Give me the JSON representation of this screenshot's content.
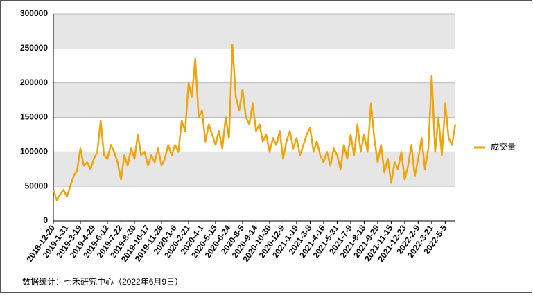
{
  "chart_data": {
    "type": "line",
    "categories": [
      "2018-12-20",
      null,
      null,
      null,
      "2019-1-31",
      null,
      null,
      null,
      "2019-3-19",
      null,
      null,
      null,
      "2019-4-29",
      null,
      null,
      null,
      "2019-6-12",
      null,
      null,
      null,
      "2019-7-22",
      null,
      null,
      null,
      "2019-8-30",
      null,
      null,
      null,
      "2019-10-17",
      null,
      null,
      null,
      "2019-11-26",
      null,
      null,
      null,
      "2020-1-6",
      null,
      null,
      null,
      "2020-2-21",
      null,
      null,
      null,
      "2020-4-1",
      null,
      null,
      null,
      "2020-5-15",
      null,
      null,
      null,
      "2020-6-24",
      null,
      null,
      null,
      "2020-8-5",
      null,
      null,
      null,
      "2020-9-14",
      null,
      null,
      null,
      "2020-10-30",
      null,
      null,
      null,
      "2020-12-9",
      null,
      null,
      null,
      "2021-1-19",
      null,
      null,
      null,
      "2021-3-8",
      null,
      null,
      null,
      "2021-4-16",
      null,
      null,
      null,
      "2021-5-31",
      null,
      null,
      null,
      "2021-7-9",
      null,
      null,
      null,
      "2021-8-18",
      null,
      null,
      null,
      "2021-9-29",
      null,
      null,
      null,
      "2021-11-15",
      null,
      null,
      null,
      "2021-12-23",
      null,
      null,
      null,
      "2022-2-9",
      null,
      null,
      null,
      "2022-3-21",
      null,
      null,
      null,
      "2022-5-5",
      null,
      null,
      null
    ],
    "series": [
      {
        "name": "成交量",
        "color": "#f0a30a",
        "values": [
          45000,
          30000,
          38000,
          45000,
          35000,
          50000,
          65000,
          72000,
          105000,
          80000,
          85000,
          75000,
          90000,
          100000,
          145000,
          95000,
          90000,
          110000,
          100000,
          85000,
          60000,
          95000,
          80000,
          105000,
          90000,
          125000,
          95000,
          100000,
          80000,
          95000,
          85000,
          105000,
          80000,
          90000,
          110000,
          95000,
          110000,
          100000,
          145000,
          130000,
          200000,
          180000,
          235000,
          150000,
          160000,
          115000,
          140000,
          125000,
          110000,
          130000,
          105000,
          150000,
          120000,
          255000,
          180000,
          160000,
          190000,
          150000,
          140000,
          170000,
          130000,
          140000,
          115000,
          125000,
          100000,
          120000,
          110000,
          130000,
          90000,
          115000,
          130000,
          105000,
          120000,
          95000,
          110000,
          125000,
          135000,
          100000,
          115000,
          95000,
          85000,
          100000,
          80000,
          105000,
          95000,
          75000,
          110000,
          90000,
          125000,
          95000,
          140000,
          100000,
          125000,
          100000,
          170000,
          120000,
          85000,
          110000,
          70000,
          90000,
          55000,
          85000,
          75000,
          100000,
          60000,
          80000,
          110000,
          65000,
          90000,
          120000,
          75000,
          105000,
          210000,
          100000,
          150000,
          95000,
          170000,
          120000,
          110000,
          140000
        ]
      }
    ],
    "ylim": [
      0,
      300000
    ],
    "yticks": [
      0,
      50000,
      100000,
      150000,
      200000,
      250000,
      300000
    ],
    "grid": true,
    "legend": "right",
    "source": "数据统计：七禾研究中心（2022年6月9日）"
  }
}
